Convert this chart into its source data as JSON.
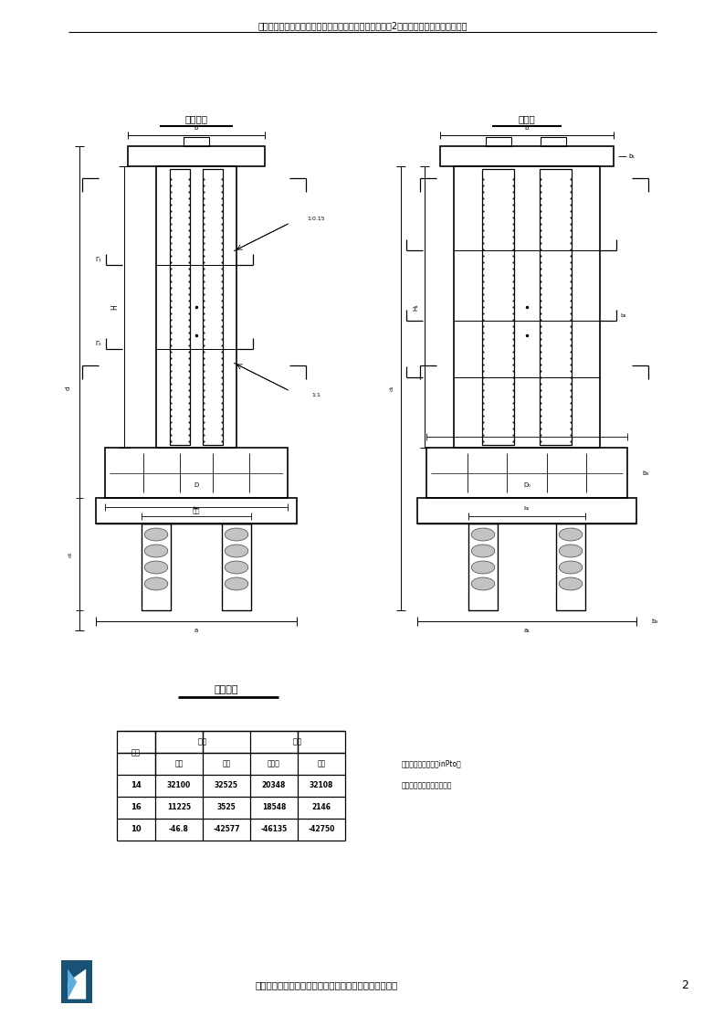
{
  "page_title": "沪蓉高速公路武汉至荆门段一期土建工程第五标段汉北河2号特大桥薄壁空心墩施工方案",
  "left_diagram_title": "标准节段",
  "right_diagram_title": "顶节段",
  "table_title": "钢筋统计",
  "row1_label": "序号",
  "col_group1": "合计",
  "col_group2": "单根",
  "sub_headers": [
    "直径",
    "根数",
    "总根数",
    "重量"
  ],
  "table_rows": [
    [
      "14",
      "32100",
      "32525",
      "20348",
      "32108"
    ],
    [
      "16",
      "11225",
      "3525",
      "18548",
      "2146"
    ],
    [
      "10",
      "-46.8",
      "-42577",
      "-46135",
      "-42750"
    ]
  ],
  "note_line1": "注：表中数值（单位inPto）",
  "note_line2": "钢筋数量均为单侧数量计。",
  "footer_text": "中铁十局集团有限公司武荆高速一期土建五标项目经理部",
  "page_number": "2",
  "bg_color": "#ffffff",
  "line_color": "#000000"
}
